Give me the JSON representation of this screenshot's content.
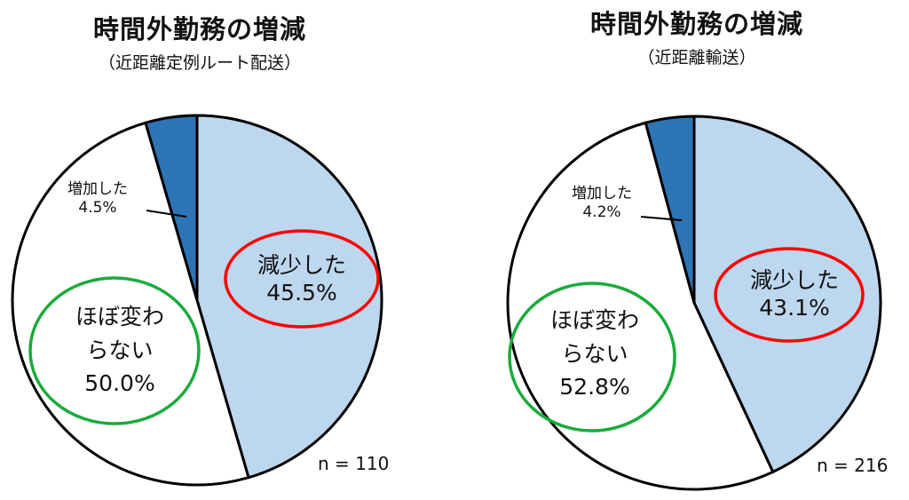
{
  "charts": [
    {
      "title": "時間外勤務の増減",
      "subtitle": "（近距離定例ルート配送）",
      "n_label": "n = 110",
      "slices": [
        {
          "label": "減少した",
          "value_label": "45.5%"
        },
        {
          "label": "ほぼ変わらない",
          "label_line1": "ほぼ変わ",
          "label_line2": "らない",
          "value_label": "50.0%"
        },
        {
          "label": "増加した",
          "value_label": "4.5%"
        }
      ]
    },
    {
      "title": "時間外勤務の増減",
      "subtitle": "（近距離輸送）",
      "n_label": "n = 216",
      "slices": [
        {
          "label": "減少した",
          "value_label": "43.1%"
        },
        {
          "label": "ほぼ変わらない",
          "label_line1": "ほぼ変わ",
          "label_line2": "らない",
          "value_label": "52.8%"
        },
        {
          "label": "増加した",
          "value_label": "4.2%"
        }
      ]
    }
  ],
  "colors": {
    "decreased": "#bdd7ee",
    "unchanged": "#ffffff",
    "increased": "#2e75b6",
    "outline": "#000000",
    "highlight_decreased": "#ff0000",
    "highlight_unchanged": "#1aab3c"
  },
  "chart_data": [
    {
      "type": "pie",
      "title": "時間外勤務の増減（近距離定例ルート配送）",
      "categories": [
        "減少した",
        "ほぼ変わらない",
        "増加した"
      ],
      "values": [
        45.5,
        50.0,
        4.5
      ],
      "n": 110,
      "start_angle": "12 o'clock, clockwise",
      "legend": "none (inline labels)"
    },
    {
      "type": "pie",
      "title": "時間外勤務の増減（近距離輸送）",
      "categories": [
        "減少した",
        "ほぼ変わらない",
        "増加した"
      ],
      "values": [
        43.1,
        52.8,
        4.2
      ],
      "n": 216,
      "start_angle": "12 o'clock, clockwise",
      "legend": "none (inline labels)"
    }
  ]
}
